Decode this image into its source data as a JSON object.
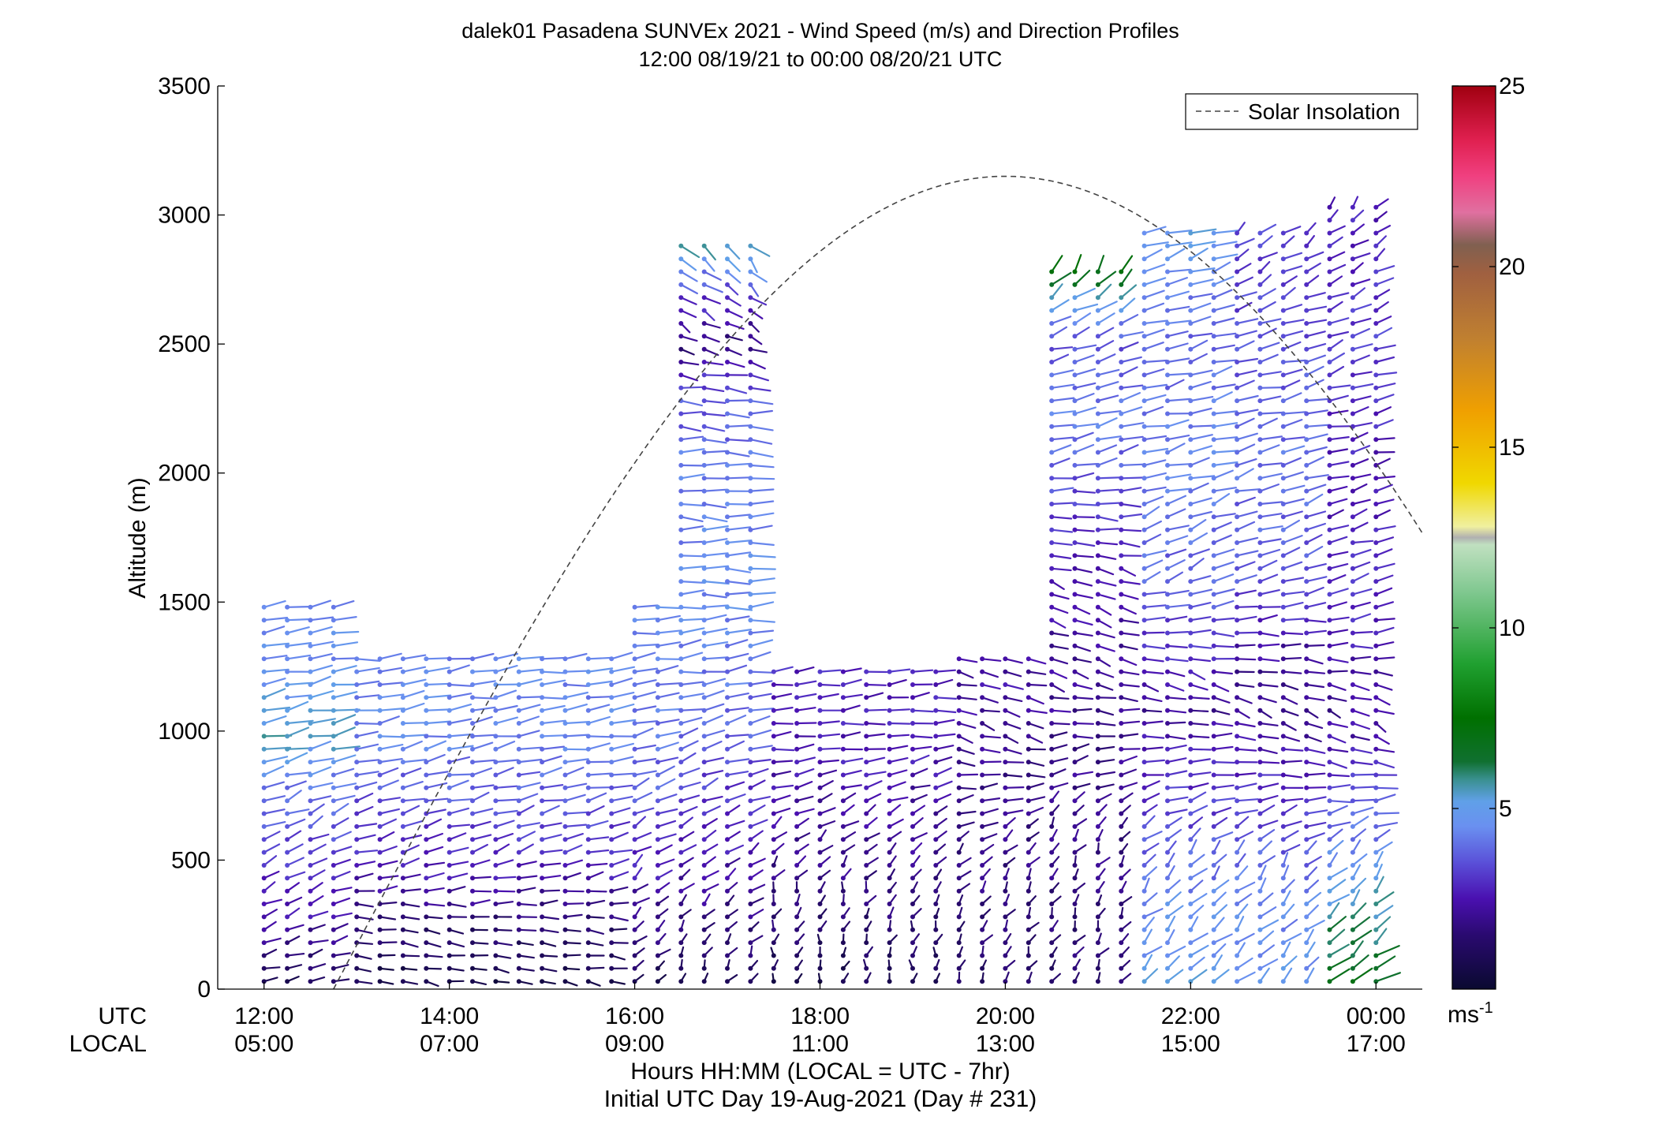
{
  "chart_data": {
    "type": "wind-barb-profile",
    "title": "dalek01 Pasadena SUNVEx 2021 - Wind Speed (m/s) and Direction Profiles",
    "subtitle": "12:00 08/19/21 to 00:00 08/20/21  UTC",
    "ylabel": "Altitude (m)",
    "xlabel": "Hours HH:MM  (LOCAL = UTC - 7hr)",
    "xlabel2": "Initial UTC Day 19-Aug-2021 (Day # 231)",
    "row_label_utc": "UTC",
    "row_label_local": "LOCAL",
    "x_range_hours_utc": [
      11.5,
      24.5
    ],
    "ylim": [
      0,
      3500
    ],
    "y_ticks": [
      0,
      500,
      1000,
      1500,
      2000,
      2500,
      3000,
      3500
    ],
    "x_ticks": [
      {
        "hour": 12,
        "utc": "12:00",
        "local": "05:00"
      },
      {
        "hour": 14,
        "utc": "14:00",
        "local": "07:00"
      },
      {
        "hour": 16,
        "utc": "16:00",
        "local": "09:00"
      },
      {
        "hour": 18,
        "utc": "18:00",
        "local": "11:00"
      },
      {
        "hour": 20,
        "utc": "20:00",
        "local": "13:00"
      },
      {
        "hour": 22,
        "utc": "22:00",
        "local": "15:00"
      },
      {
        "hour": 24,
        "utc": "00:00",
        "local": "17:00"
      }
    ],
    "legend": {
      "label": "Solar Insolation",
      "position": "top-right"
    },
    "solar_insolation": {
      "peak_hour_utc": 20.0,
      "peak_altitude_equiv": 3150,
      "zero_hour_utc": 12.75,
      "style": "dashed"
    },
    "colorbar": {
      "range": [
        0,
        25
      ],
      "ticks": [
        5,
        10,
        15,
        20,
        25
      ],
      "unit_text": "ms",
      "unit_exp": "-1",
      "stops": [
        {
          "v": 0,
          "c": "#0a0a30"
        },
        {
          "v": 1.5,
          "c": "#2a0a70"
        },
        {
          "v": 2.5,
          "c": "#4a10b0"
        },
        {
          "v": 3.5,
          "c": "#5a50d8"
        },
        {
          "v": 4.5,
          "c": "#6a90f0"
        },
        {
          "v": 5.2,
          "c": "#60a0e8"
        },
        {
          "v": 5.8,
          "c": "#3a9090"
        },
        {
          "v": 6.3,
          "c": "#107030"
        },
        {
          "v": 7.5,
          "c": "#007000"
        },
        {
          "v": 9.0,
          "c": "#20a030"
        },
        {
          "v": 11.0,
          "c": "#80c890"
        },
        {
          "v": 12.3,
          "c": "#c0e0c0"
        },
        {
          "v": 12.5,
          "c": "#b0b0b0"
        },
        {
          "v": 12.8,
          "c": "#f0f0a0"
        },
        {
          "v": 14.0,
          "c": "#f0d800"
        },
        {
          "v": 16.0,
          "c": "#f0a000"
        },
        {
          "v": 18.0,
          "c": "#c08030"
        },
        {
          "v": 19.8,
          "c": "#a06040"
        },
        {
          "v": 20.6,
          "c": "#806050"
        },
        {
          "v": 21.5,
          "c": "#e070a0"
        },
        {
          "v": 22.5,
          "c": "#f04080"
        },
        {
          "v": 23.5,
          "c": "#e02050"
        },
        {
          "v": 25,
          "c": "#a00010"
        }
      ]
    },
    "profile_spacing_hours": 0.25,
    "row_spacing_m": 50,
    "segments": [
      {
        "h0": 12.0,
        "h1": 12.9,
        "z0": 30,
        "z1": 1500,
        "spd": [
          [
            0,
            0.6
          ],
          [
            150,
            1.8
          ],
          [
            450,
            3.0
          ],
          [
            800,
            4.2
          ],
          [
            1000,
            5.6
          ],
          [
            1200,
            4.6
          ],
          [
            1500,
            4.4
          ]
        ],
        "dir": [
          [
            0,
            250
          ],
          [
            200,
            240
          ],
          [
            500,
            225
          ],
          [
            1000,
            250
          ],
          [
            1500,
            255
          ]
        ]
      },
      {
        "h0": 13.0,
        "h1": 15.9,
        "z0": 30,
        "z1": 1300,
        "spd": [
          [
            0,
            0.6
          ],
          [
            250,
            1.4
          ],
          [
            450,
            2.6
          ],
          [
            800,
            3.8
          ],
          [
            1000,
            4.4
          ],
          [
            1300,
            4.3
          ]
        ],
        "dir": [
          [
            0,
            285
          ],
          [
            250,
            280
          ],
          [
            500,
            240
          ],
          [
            1000,
            255
          ],
          [
            1300,
            260
          ]
        ]
      },
      {
        "h0": 16.0,
        "h1": 16.4,
        "z0": 30,
        "z1": 1500,
        "spd": [
          [
            0,
            0.8
          ],
          [
            400,
            2.4
          ],
          [
            800,
            3.8
          ],
          [
            1300,
            4.4
          ],
          [
            1500,
            4.5
          ]
        ],
        "dir": [
          [
            0,
            210
          ],
          [
            500,
            220
          ],
          [
            1000,
            250
          ],
          [
            1500,
            260
          ]
        ]
      },
      {
        "h0": 16.5,
        "h1": 17.4,
        "z0": 30,
        "z1": 2900,
        "spd": [
          [
            0,
            1.0
          ],
          [
            500,
            2.4
          ],
          [
            1000,
            3.8
          ],
          [
            1500,
            4.5
          ],
          [
            2000,
            4.2
          ],
          [
            2300,
            3.6
          ],
          [
            2500,
            1.6
          ],
          [
            2700,
            3.2
          ],
          [
            2900,
            5.8
          ]
        ],
        "dir": [
          [
            0,
            200
          ],
          [
            500,
            215
          ],
          [
            1000,
            250
          ],
          [
            1700,
            270
          ],
          [
            2300,
            275
          ],
          [
            2600,
            315
          ],
          [
            2900,
            330
          ]
        ]
      },
      {
        "h0": 17.5,
        "h1": 19.4,
        "z0": 30,
        "z1": 1250,
        "spd": [
          [
            0,
            0.8
          ],
          [
            400,
            1.8
          ],
          [
            900,
            2.6
          ],
          [
            1250,
            2.8
          ]
        ],
        "dir": [
          [
            0,
            185
          ],
          [
            400,
            195
          ],
          [
            1000,
            265
          ],
          [
            1250,
            255
          ]
        ]
      },
      {
        "h0": 19.5,
        "h1": 20.4,
        "z0": 30,
        "z1": 1300,
        "spd": [
          [
            0,
            1.2
          ],
          [
            400,
            1.8
          ],
          [
            900,
            2.0
          ],
          [
            1300,
            2.4
          ]
        ],
        "dir": [
          [
            0,
            195
          ],
          [
            500,
            205
          ],
          [
            1000,
            300
          ],
          [
            1300,
            285
          ]
        ]
      },
      {
        "h0": 20.5,
        "h1": 21.4,
        "z0": 30,
        "z1": 2800,
        "spd": [
          [
            0,
            1.4
          ],
          [
            500,
            1.8
          ],
          [
            1000,
            2.0
          ],
          [
            1400,
            2.2
          ],
          [
            1800,
            3.0
          ],
          [
            2200,
            4.2
          ],
          [
            2500,
            3.6
          ],
          [
            2650,
            5.0
          ],
          [
            2800,
            7.5
          ]
        ],
        "dir": [
          [
            0,
            200
          ],
          [
            600,
            200
          ],
          [
            1200,
            300
          ],
          [
            1600,
            300
          ],
          [
            2000,
            250
          ],
          [
            2500,
            245
          ],
          [
            2800,
            200
          ]
        ]
      },
      {
        "h0": 21.5,
        "h1": 22.4,
        "z0": 30,
        "z1": 2950,
        "spd": [
          [
            0,
            5.0
          ],
          [
            300,
            4.6
          ],
          [
            700,
            3.2
          ],
          [
            1100,
            2.0
          ],
          [
            1500,
            3.6
          ],
          [
            2000,
            4.4
          ],
          [
            2500,
            3.8
          ],
          [
            2950,
            5.0
          ]
        ],
        "dir": [
          [
            0,
            215
          ],
          [
            500,
            210
          ],
          [
            1200,
            300
          ],
          [
            1600,
            230
          ],
          [
            2200,
            250
          ],
          [
            2950,
            240
          ]
        ]
      },
      {
        "h0": 22.5,
        "h1": 23.4,
        "z0": 30,
        "z1": 2950,
        "spd": [
          [
            0,
            4.8
          ],
          [
            400,
            4.2
          ],
          [
            800,
            2.8
          ],
          [
            1200,
            1.8
          ],
          [
            1600,
            3.6
          ],
          [
            2100,
            4.0
          ],
          [
            2500,
            3.4
          ],
          [
            2950,
            3.2
          ]
        ],
        "dir": [
          [
            0,
            210
          ],
          [
            500,
            210
          ],
          [
            1100,
            310
          ],
          [
            1600,
            235
          ],
          [
            2300,
            250
          ],
          [
            2950,
            215
          ]
        ]
      },
      {
        "h0": 23.5,
        "h1": 24.0,
        "z0": 30,
        "z1": 3050,
        "spd": [
          [
            0,
            6.8
          ],
          [
            350,
            5.4
          ],
          [
            700,
            3.6
          ],
          [
            1100,
            2.0
          ],
          [
            1500,
            3.0
          ],
          [
            2000,
            2.6
          ],
          [
            2500,
            3.2
          ],
          [
            3050,
            2.6
          ]
        ],
        "dir": [
          [
            0,
            220
          ],
          [
            500,
            210
          ],
          [
            1000,
            315
          ],
          [
            1500,
            240
          ],
          [
            2200,
            250
          ],
          [
            3050,
            210
          ]
        ]
      }
    ]
  }
}
